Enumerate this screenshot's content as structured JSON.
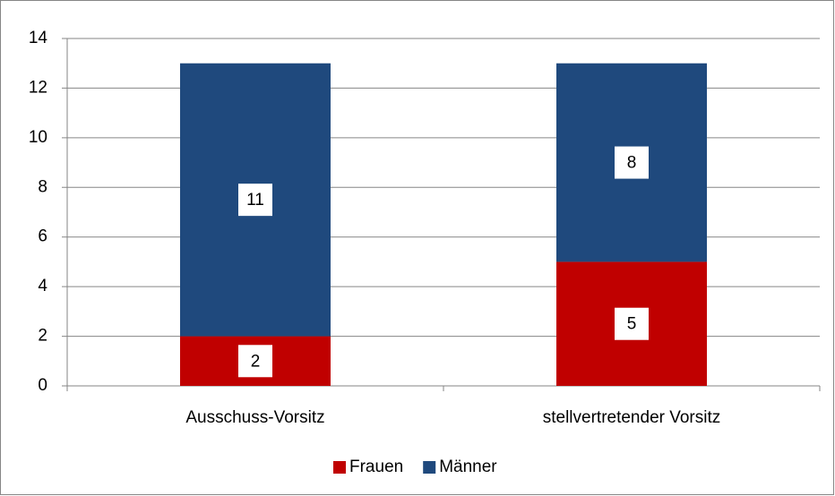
{
  "chart_data": {
    "type": "stacked_bar",
    "categories": [
      "Ausschuss-Vorsitz",
      "stellvertretender Vorsitz"
    ],
    "series": [
      {
        "name": "Frauen",
        "color": "#c00000",
        "values": [
          2,
          5
        ]
      },
      {
        "name": "Männer",
        "color": "#1f497d",
        "values": [
          11,
          8
        ]
      }
    ],
    "ylim": [
      0,
      14
    ],
    "yticks": [
      0,
      2,
      4,
      6,
      8,
      10,
      12,
      14
    ],
    "grid": true,
    "legend": "bottom"
  }
}
